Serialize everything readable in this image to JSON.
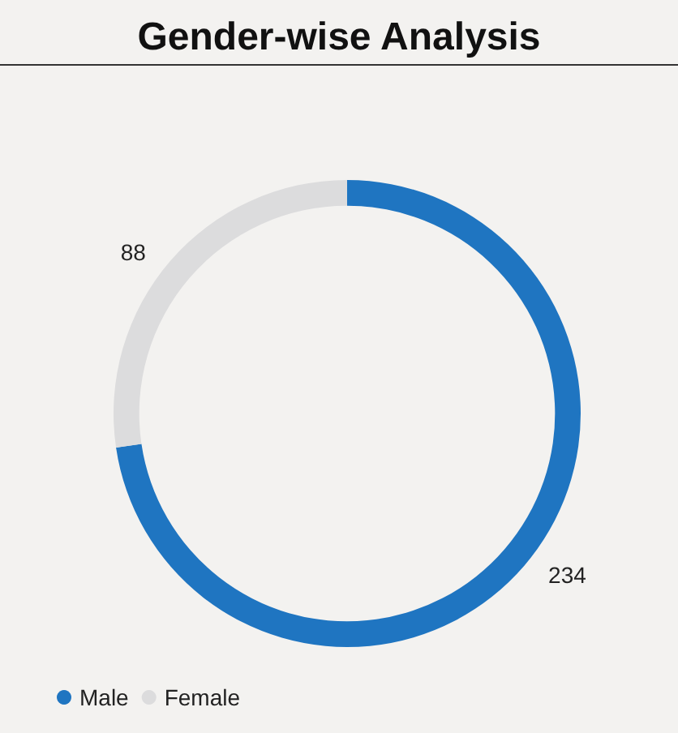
{
  "chart_data": {
    "type": "donut",
    "title": "Gender-wise Analysis",
    "categories": [
      "Male",
      "Female"
    ],
    "values": [
      234,
      88
    ],
    "colors": [
      "#1f75c1",
      "#dcdcdd"
    ],
    "data_labels": true,
    "legend": "bottom left"
  }
}
